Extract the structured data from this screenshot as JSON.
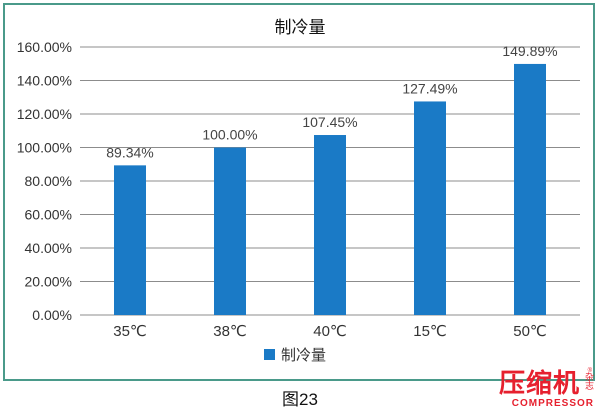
{
  "chart_data": {
    "type": "bar",
    "title": "制冷量",
    "categories": [
      "35℃",
      "38℃",
      "40℃",
      "15℃",
      "50℃"
    ],
    "series": [
      {
        "name": "制冷量",
        "values": [
          89.34,
          100.0,
          107.45,
          127.49,
          149.89
        ]
      }
    ],
    "data_labels": [
      "89.34%",
      "100.00%",
      "107.45%",
      "127.49%",
      "149.89%"
    ],
    "y_ticks": [
      "0.00%",
      "20.00%",
      "40.00%",
      "60.00%",
      "80.00%",
      "100.00%",
      "120.00%",
      "140.00%",
      "160.00%"
    ],
    "ylim": [
      0,
      160
    ],
    "y_step": 20,
    "grid": true,
    "legend_position": "bottom",
    "colors": {
      "bar": "#1a7ac6",
      "grid": "#8c8c8c",
      "frame": "#4a9a8a"
    }
  },
  "figure": {
    "caption": "图23"
  },
  "watermark": {
    "main": "压缩机",
    "side": "杂志",
    "sub": "COMPRESSOR",
    "reg": "®"
  }
}
